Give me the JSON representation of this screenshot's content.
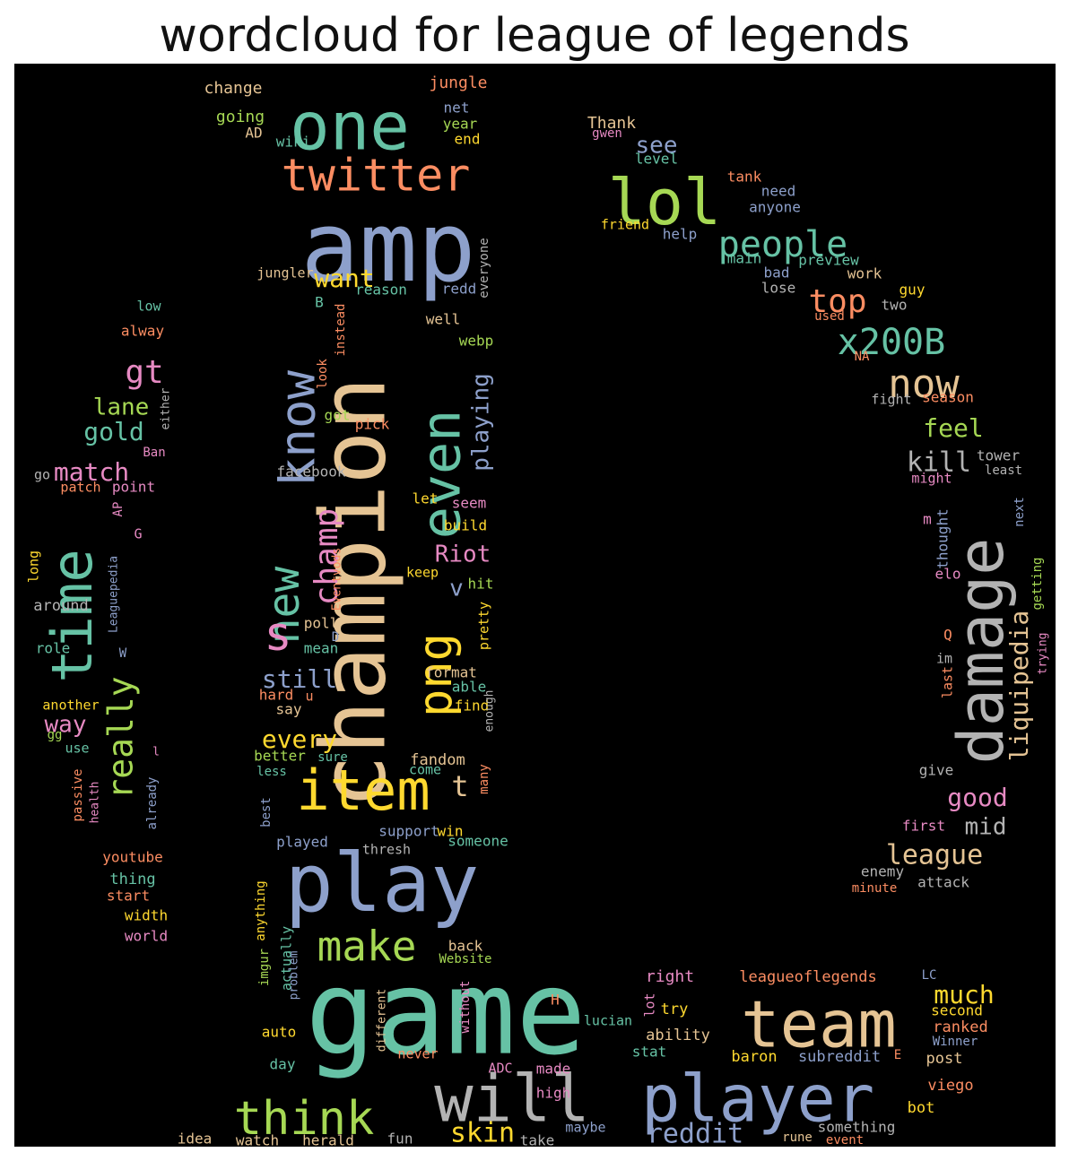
{
  "title": "wordcloud for league of legends",
  "palette": [
    "#66c2a5",
    "#fc8d62",
    "#8da0cb",
    "#e78ac3",
    "#a6d854",
    "#ffd92f",
    "#e5c494",
    "#b3b3b3"
  ],
  "words": [
    {
      "t": "game",
      "c": 0
    },
    {
      "t": "amp",
      "c": 2
    },
    {
      "t": "champion",
      "c": 6
    },
    {
      "t": "play",
      "c": 2
    },
    {
      "t": "one",
      "c": 0
    },
    {
      "t": "team",
      "c": 6
    },
    {
      "t": "player",
      "c": 2
    },
    {
      "t": "will",
      "c": 7
    },
    {
      "t": "lol",
      "c": 4
    },
    {
      "t": "damage",
      "c": 7
    },
    {
      "t": "item",
      "c": 5
    },
    {
      "t": "time",
      "c": 0
    },
    {
      "t": "even",
      "c": 0
    },
    {
      "t": "png",
      "c": 5
    },
    {
      "t": "know",
      "c": 2
    },
    {
      "t": "twitter",
      "c": 1
    },
    {
      "t": "think",
      "c": 4
    },
    {
      "t": "new",
      "c": 0
    },
    {
      "t": "s",
      "c": 3
    },
    {
      "t": "make",
      "c": 4
    },
    {
      "t": "people",
      "c": 0
    },
    {
      "t": "now",
      "c": 6
    },
    {
      "t": "x200B",
      "c": 0
    },
    {
      "t": "really",
      "c": 4
    },
    {
      "t": "champ",
      "c": 3
    },
    {
      "t": "top",
      "c": 1
    },
    {
      "t": "liquipedia",
      "c": 6
    },
    {
      "t": "gt",
      "c": 3
    },
    {
      "t": "league",
      "c": 6
    },
    {
      "t": "skin",
      "c": 5
    },
    {
      "t": "reddit",
      "c": 2
    },
    {
      "t": "playing",
      "c": 2
    },
    {
      "t": "match",
      "c": 3
    },
    {
      "t": "gold",
      "c": 0
    },
    {
      "t": "kill",
      "c": 7
    },
    {
      "t": "much",
      "c": 5
    },
    {
      "t": "good",
      "c": 3
    },
    {
      "t": "feel",
      "c": 4
    },
    {
      "t": "still",
      "c": 2
    },
    {
      "t": "want",
      "c": 5
    },
    {
      "t": "lane",
      "c": 4
    },
    {
      "t": "Riot",
      "c": 3
    },
    {
      "t": "every",
      "c": 5
    },
    {
      "t": "way",
      "c": 3
    },
    {
      "t": "see",
      "c": 2
    },
    {
      "t": "mid",
      "c": 7
    },
    {
      "t": "t",
      "c": 6
    },
    {
      "t": "v",
      "c": 2
    },
    {
      "t": "change",
      "c": 6
    },
    {
      "t": "jungle",
      "c": 1
    },
    {
      "t": "going",
      "c": 4
    },
    {
      "t": "AD",
      "c": 6
    },
    {
      "t": "wiki",
      "c": 0
    },
    {
      "t": "net",
      "c": 2
    },
    {
      "t": "year",
      "c": 4
    },
    {
      "t": "end",
      "c": 5
    },
    {
      "t": "Thank",
      "c": 6
    },
    {
      "t": "gwen",
      "c": 3
    },
    {
      "t": "level",
      "c": 0
    },
    {
      "t": "tank",
      "c": 1
    },
    {
      "t": "need",
      "c": 2
    },
    {
      "t": "anyone",
      "c": 2
    },
    {
      "t": "friend",
      "c": 5
    },
    {
      "t": "help",
      "c": 2
    },
    {
      "t": "main",
      "c": 0
    },
    {
      "t": "preview",
      "c": 0
    },
    {
      "t": "bad",
      "c": 2
    },
    {
      "t": "work",
      "c": 6
    },
    {
      "t": "lose",
      "c": 7
    },
    {
      "t": "guy",
      "c": 5
    },
    {
      "t": "two",
      "c": 7
    },
    {
      "t": "used",
      "c": 1
    },
    {
      "t": "NA",
      "c": 1
    },
    {
      "t": "fight",
      "c": 7
    },
    {
      "t": "season",
      "c": 1
    },
    {
      "t": "tower",
      "c": 7
    },
    {
      "t": "least",
      "c": 7
    },
    {
      "t": "might",
      "c": 3
    },
    {
      "t": "next",
      "c": 2
    },
    {
      "t": "m",
      "c": 3
    },
    {
      "t": "thought",
      "c": 2
    },
    {
      "t": "getting",
      "c": 4
    },
    {
      "t": "elo",
      "c": 3
    },
    {
      "t": "Q",
      "c": 1
    },
    {
      "t": "trying",
      "c": 3
    },
    {
      "t": "im",
      "c": 7
    },
    {
      "t": "last",
      "c": 1
    },
    {
      "t": "give",
      "c": 7
    },
    {
      "t": "first",
      "c": 3
    },
    {
      "t": "enemy",
      "c": 7
    },
    {
      "t": "attack",
      "c": 7
    },
    {
      "t": "minute",
      "c": 1
    },
    {
      "t": "jungler",
      "c": 6
    },
    {
      "t": "B",
      "c": 0
    },
    {
      "t": "reason",
      "c": 0
    },
    {
      "t": "redd",
      "c": 2
    },
    {
      "t": "everyone",
      "c": 7
    },
    {
      "t": "instead",
      "c": 1
    },
    {
      "t": "well",
      "c": 6
    },
    {
      "t": "webp",
      "c": 4
    },
    {
      "t": "look",
      "c": 1
    },
    {
      "t": "got",
      "c": 4
    },
    {
      "t": "pick",
      "c": 1
    },
    {
      "t": "facebook",
      "c": 7
    },
    {
      "t": "let",
      "c": 5
    },
    {
      "t": "seem",
      "c": 3
    },
    {
      "t": "build",
      "c": 5
    },
    {
      "t": "Eventvods",
      "c": 1
    },
    {
      "t": "keep",
      "c": 5
    },
    {
      "t": "hit",
      "c": 4
    },
    {
      "t": "poll",
      "c": 6
    },
    {
      "t": "pretty",
      "c": 5
    },
    {
      "t": "D",
      "c": 2
    },
    {
      "t": "mean",
      "c": 0
    },
    {
      "t": "format",
      "c": 6
    },
    {
      "t": "able",
      "c": 0
    },
    {
      "t": "hard",
      "c": 1
    },
    {
      "t": "u",
      "c": 1
    },
    {
      "t": "say",
      "c": 6
    },
    {
      "t": "find",
      "c": 5
    },
    {
      "t": "enough",
      "c": 7
    },
    {
      "t": "better",
      "c": 4
    },
    {
      "t": "sure",
      "c": 0
    },
    {
      "t": "less",
      "c": 0
    },
    {
      "t": "fandom",
      "c": 6
    },
    {
      "t": "come",
      "c": 0
    },
    {
      "t": "many",
      "c": 1
    },
    {
      "t": "best",
      "c": 2
    },
    {
      "t": "support",
      "c": 2
    },
    {
      "t": "win",
      "c": 5
    },
    {
      "t": "played",
      "c": 2
    },
    {
      "t": "thresh",
      "c": 7
    },
    {
      "t": "someone",
      "c": 0
    },
    {
      "t": "anything",
      "c": 5
    },
    {
      "t": "actually",
      "c": 0
    },
    {
      "t": "imgur",
      "c": 4
    },
    {
      "t": "problem",
      "c": 2
    },
    {
      "t": "back",
      "c": 6
    },
    {
      "t": "Website",
      "c": 4
    },
    {
      "t": "without",
      "c": 3
    },
    {
      "t": "different",
      "c": 6
    },
    {
      "t": "auto",
      "c": 5
    },
    {
      "t": "never",
      "c": 1
    },
    {
      "t": "day",
      "c": 0
    },
    {
      "t": "ADC",
      "c": 3
    },
    {
      "t": "made",
      "c": 3
    },
    {
      "t": "high",
      "c": 3
    },
    {
      "t": "maybe",
      "c": 2
    },
    {
      "t": "idea",
      "c": 6
    },
    {
      "t": "watch",
      "c": 6
    },
    {
      "t": "herald",
      "c": 6
    },
    {
      "t": "fun",
      "c": 7
    },
    {
      "t": "take",
      "c": 7
    },
    {
      "t": "right",
      "c": 3
    },
    {
      "t": "leagueoflegends",
      "c": 1
    },
    {
      "t": "LC",
      "c": 2
    },
    {
      "t": "H",
      "c": 1
    },
    {
      "t": "lot",
      "c": 3
    },
    {
      "t": "try",
      "c": 5
    },
    {
      "t": "lucian",
      "c": 0
    },
    {
      "t": "ability",
      "c": 6
    },
    {
      "t": "stat",
      "c": 0
    },
    {
      "t": "baron",
      "c": 5
    },
    {
      "t": "subreddit",
      "c": 2
    },
    {
      "t": "E",
      "c": 1
    },
    {
      "t": "second",
      "c": 5
    },
    {
      "t": "ranked",
      "c": 1
    },
    {
      "t": "Winner",
      "c": 2
    },
    {
      "t": "post",
      "c": 6
    },
    {
      "t": "viego",
      "c": 1
    },
    {
      "t": "bot",
      "c": 5
    },
    {
      "t": "something",
      "c": 7
    },
    {
      "t": "rune",
      "c": 6
    },
    {
      "t": "event",
      "c": 1
    },
    {
      "t": "low",
      "c": 0
    },
    {
      "t": "alway",
      "c": 1
    },
    {
      "t": "either",
      "c": 7
    },
    {
      "t": "Ban",
      "c": 3
    },
    {
      "t": "go",
      "c": 7
    },
    {
      "t": "patch",
      "c": 1
    },
    {
      "t": "point",
      "c": 3
    },
    {
      "t": "AP",
      "c": 3
    },
    {
      "t": "G",
      "c": 3
    },
    {
      "t": "long",
      "c": 5
    },
    {
      "t": "Leaguepedia",
      "c": 2
    },
    {
      "t": "around",
      "c": 7
    },
    {
      "t": "role",
      "c": 0
    },
    {
      "t": "W",
      "c": 2
    },
    {
      "t": "another",
      "c": 5
    },
    {
      "t": "gg",
      "c": 4
    },
    {
      "t": "use",
      "c": 0
    },
    {
      "t": "l",
      "c": 3
    },
    {
      "t": "passive",
      "c": 1
    },
    {
      "t": "health",
      "c": 3
    },
    {
      "t": "already",
      "c": 2
    },
    {
      "t": "youtube",
      "c": 1
    },
    {
      "t": "thing",
      "c": 0
    },
    {
      "t": "start",
      "c": 1
    },
    {
      "t": "width",
      "c": 5
    },
    {
      "t": "world",
      "c": 3
    }
  ]
}
